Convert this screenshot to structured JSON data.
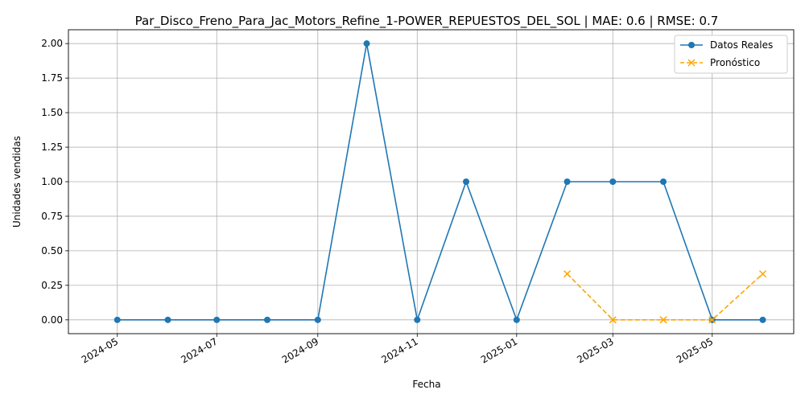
{
  "chart_data": {
    "type": "line",
    "title": "Par_Disco_Freno_Para_Jac_Motors_Refine_1-POWER_REPUESTOS_DEL_SOL | MAE: 0.6 | RMSE: 0.7",
    "xlabel": "Fecha",
    "ylabel": "Unidades vendidas",
    "ylim": [
      -0.1,
      2.1
    ],
    "xlim": [
      "2024-04-01",
      "2025-06-20"
    ],
    "grid": true,
    "legend_position": "top-right",
    "x_ticks": [
      "2024-05",
      "2024-07",
      "2024-09",
      "2024-11",
      "2025-01",
      "2025-03",
      "2025-05"
    ],
    "x_tick_dates": [
      "2024-05-01",
      "2024-07-01",
      "2024-09-01",
      "2024-11-01",
      "2025-01-01",
      "2025-03-01",
      "2025-05-01"
    ],
    "y_ticks": [
      "0.00",
      "0.25",
      "0.50",
      "0.75",
      "1.00",
      "1.25",
      "1.50",
      "1.75",
      "2.00"
    ],
    "y_tick_values": [
      0,
      0.25,
      0.5,
      0.75,
      1.0,
      1.25,
      1.5,
      1.75,
      2.0
    ],
    "series": [
      {
        "name": "Datos Reales",
        "color": "#1f77b4",
        "marker": "circle",
        "linestyle": "solid",
        "x": [
          "2024-05-01",
          "2024-06-01",
          "2024-07-01",
          "2024-08-01",
          "2024-09-01",
          "2024-10-01",
          "2024-11-01",
          "2024-12-01",
          "2025-01-01",
          "2025-02-01",
          "2025-03-01",
          "2025-04-01",
          "2025-05-01",
          "2025-06-01"
        ],
        "y": [
          0,
          0,
          0,
          0,
          0,
          2,
          0,
          1,
          0,
          1,
          1,
          1,
          0,
          0
        ]
      },
      {
        "name": "Pronóstico",
        "color": "#ffa500",
        "marker": "x",
        "linestyle": "dashed",
        "x": [
          "2025-02-01",
          "2025-03-01",
          "2025-04-01",
          "2025-05-01",
          "2025-06-01"
        ],
        "y": [
          0.333,
          0,
          0,
          0,
          0.333
        ]
      }
    ]
  }
}
